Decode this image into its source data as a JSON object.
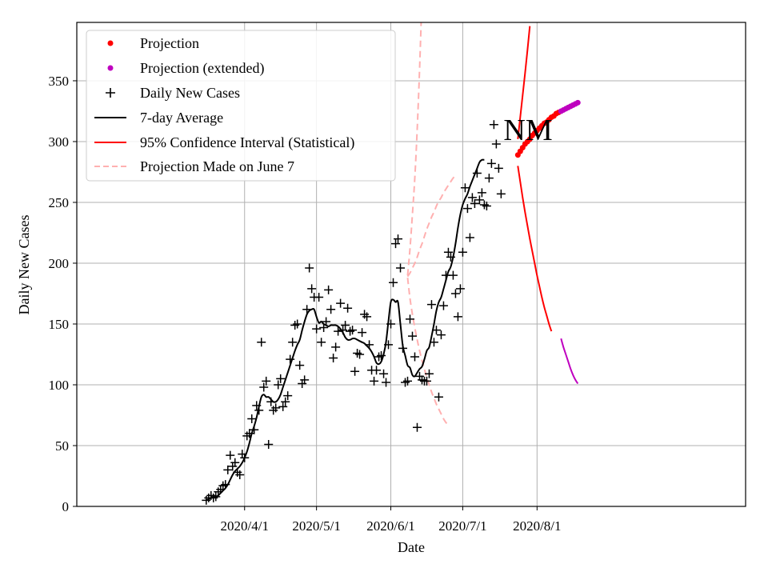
{
  "chart_data": {
    "type": "line",
    "region_label": "NM",
    "xlabel": "Date",
    "ylabel": "Daily New Cases",
    "ylim": [
      0,
      398
    ],
    "xlim": [
      -54,
      225
    ],
    "x_origin_date": "2020-03-16",
    "x_ticks": [
      {
        "day": 16,
        "label": "2020/4/1"
      },
      {
        "day": 46,
        "label": "2020/5/1"
      },
      {
        "day": 77,
        "label": "2020/6/1"
      },
      {
        "day": 107,
        "label": "2020/7/1"
      },
      {
        "day": 138,
        "label": "2020/8/1"
      }
    ],
    "y_ticks": [
      {
        "value": 0,
        "label": "0"
      },
      {
        "value": 50,
        "label": "50"
      },
      {
        "value": 100,
        "label": "100"
      },
      {
        "value": 150,
        "label": "150"
      },
      {
        "value": 200,
        "label": "200"
      },
      {
        "value": 250,
        "label": "250"
      },
      {
        "value": 300,
        "label": "300"
      },
      {
        "value": 350,
        "label": "350"
      }
    ],
    "grid": true,
    "legend_position": "top-left",
    "legend": [
      {
        "key": "projection",
        "label": "Projection"
      },
      {
        "key": "projection_ext",
        "label": "Projection (extended)"
      },
      {
        "key": "daily",
        "label": "Daily New Cases"
      },
      {
        "key": "avg",
        "label": "7-day Average"
      },
      {
        "key": "ci",
        "label": "95% Confidence Interval (Statistical)"
      },
      {
        "key": "old",
        "label": "Projection Made on June 7"
      }
    ],
    "colors": {
      "daily": "#000000",
      "avg": "#000000",
      "projection": "#ff0000",
      "projection_ext": "#bf00bf",
      "ci": "#ff0000",
      "ci_ext": "#bf00bf",
      "old": "#ffb0b0",
      "grid": "#b0b0b0"
    },
    "daily_cases": {
      "start_day": 0,
      "values": [
        5,
        7,
        9,
        7,
        8,
        12,
        14,
        17,
        18,
        30,
        42,
        33,
        36,
        28,
        26,
        43,
        40,
        58,
        60,
        72,
        63,
        83,
        79,
        135,
        98,
        103,
        51,
        86,
        79,
        81,
        100,
        105,
        82,
        86,
        91,
        121,
        135,
        149,
        150,
        116,
        101,
        104,
        162,
        196,
        179,
        172,
        146,
        172,
        135,
        147,
        152,
        178,
        162,
        122,
        131,
        144,
        167,
        145,
        149,
        163,
        144,
        145,
        111,
        126,
        125,
        143,
        158,
        156,
        133,
        112,
        103,
        112,
        123,
        124,
        109,
        102,
        133,
        150,
        184,
        216,
        220,
        196,
        130,
        102,
        103,
        154,
        140,
        123,
        65,
        107,
        104,
        103,
        103,
        109,
        166,
        135,
        145,
        90,
        141,
        165,
        190,
        209,
        205,
        190,
        175,
        156,
        179,
        209,
        262,
        245,
        221,
        254,
        249,
        274,
        252,
        258,
        248,
        247,
        270,
        282,
        314,
        298,
        278,
        257
      ]
    },
    "seven_day_avg": {
      "start_day": 0,
      "values": [
        5,
        6,
        7,
        7.5,
        8,
        9,
        11,
        13,
        15,
        18,
        22,
        26,
        29,
        31,
        33,
        36,
        40,
        45,
        52,
        60,
        66,
        73,
        82,
        90,
        92,
        90,
        90,
        88,
        86,
        86,
        88,
        92,
        98,
        104,
        110,
        116,
        122,
        128,
        133,
        137,
        145,
        152,
        158,
        161,
        162,
        162,
        156,
        151,
        152,
        150,
        149,
        148,
        149,
        149,
        149,
        148,
        146,
        143,
        139,
        137,
        137,
        138,
        138,
        137,
        136,
        135,
        134,
        132,
        130,
        127,
        123,
        118,
        117,
        119,
        125,
        135,
        152,
        168,
        170,
        168,
        168,
        150,
        132,
        124,
        116,
        114,
        108,
        107,
        110,
        113,
        115,
        121,
        128,
        131,
        140,
        150,
        161,
        168,
        172,
        179,
        186,
        193,
        197,
        205,
        216,
        229,
        240,
        248,
        253,
        257,
        263,
        268,
        273,
        278,
        283,
        285,
        285
      ]
    },
    "projection": {
      "start_day": 130,
      "values": [
        289,
        292,
        295,
        298,
        300,
        302,
        305,
        307,
        309,
        311,
        313,
        315,
        316,
        318,
        320,
        321,
        323,
        324
      ]
    },
    "projection_extended": {
      "start_day": 148,
      "values": [
        325,
        326,
        327,
        328,
        329,
        330,
        331,
        332
      ]
    },
    "ci_upper": {
      "start_day": 130,
      "values": [
        302,
        320,
        338,
        356,
        375,
        395
      ]
    },
    "ci_lower": {
      "start_day": 130,
      "values": [
        280,
        267,
        254,
        242,
        231,
        220,
        210,
        200,
        190,
        181,
        172,
        164,
        157,
        150,
        144
      ]
    },
    "ci_lower_extended": {
      "start_day": 148,
      "values": [
        138,
        131,
        125,
        119,
        113,
        108,
        104,
        101
      ]
    },
    "old_projection_upper": {
      "start_day": 84,
      "values": [
        190,
        212,
        240,
        270,
        310,
        360,
        420
      ]
    },
    "old_projection_mid": {
      "start_day": 84,
      "values": [
        189,
        192,
        196,
        200,
        205,
        211,
        216,
        222,
        228,
        233,
        238,
        242,
        247,
        251,
        254,
        258,
        261,
        264,
        267,
        270,
        272
      ]
    },
    "old_projection_lower": {
      "start_day": 84,
      "values": [
        188,
        171,
        158,
        147,
        137,
        128,
        120,
        113,
        106,
        100,
        94,
        89,
        84,
        80,
        76,
        72,
        69,
        67
      ]
    }
  }
}
